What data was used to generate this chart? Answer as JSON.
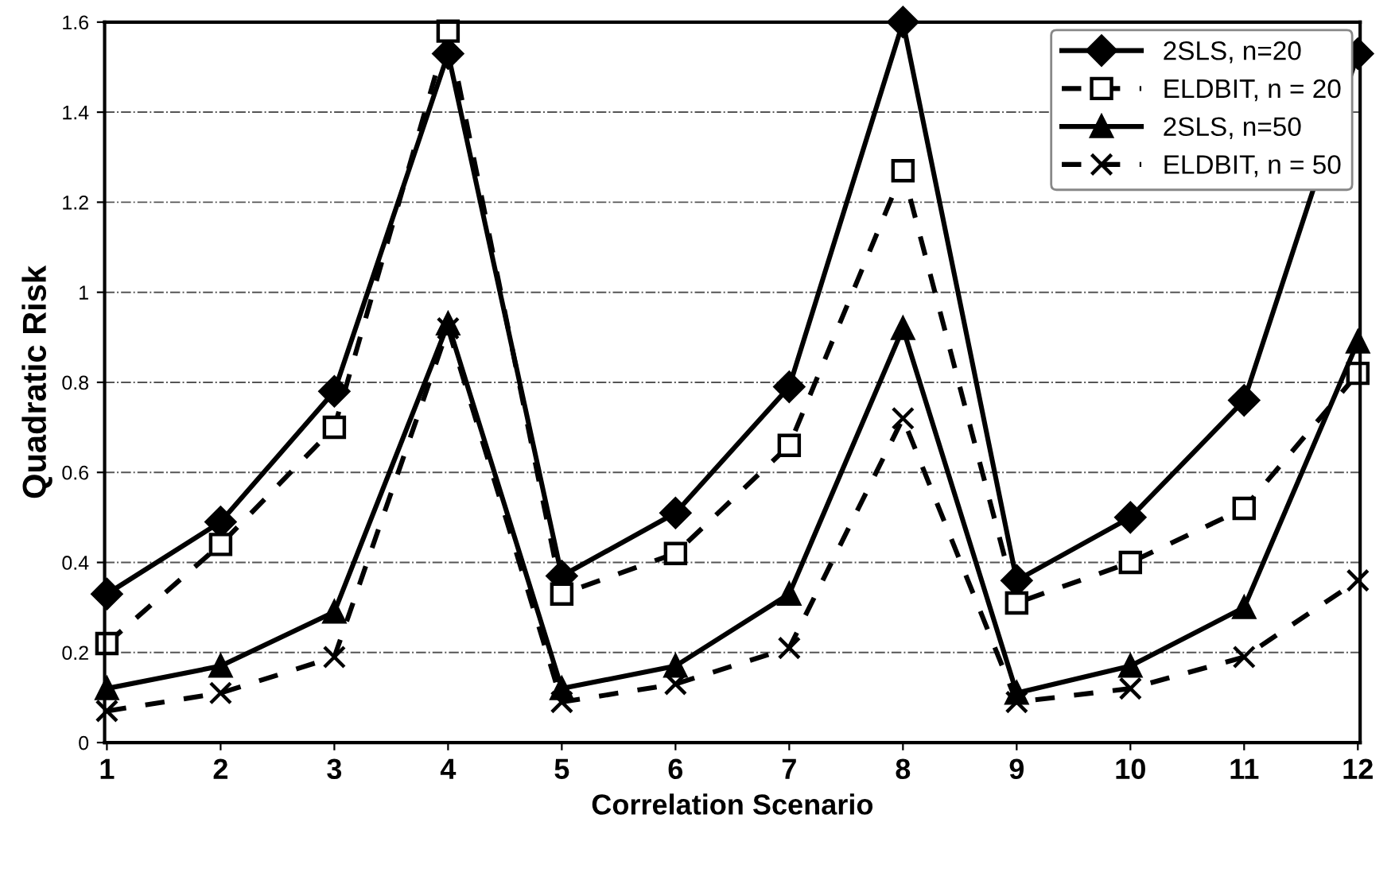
{
  "chart_data": {
    "type": "line",
    "xlabel": "Correlation Scenario",
    "ylabel": "Quadratic Risk",
    "categories": [
      "1",
      "2",
      "3",
      "4",
      "5",
      "6",
      "7",
      "8",
      "9",
      "10",
      "11",
      "12"
    ],
    "series": [
      {
        "name": "2SLS, n=20",
        "color": "#000000",
        "marker": "diamond",
        "line_style": "solid",
        "values": [
          0.33,
          0.49,
          0.78,
          1.53,
          0.37,
          0.51,
          0.79,
          1.6,
          0.36,
          0.5,
          0.76,
          1.53
        ]
      },
      {
        "name": "ELDBIT, n = 20",
        "color": "#000000",
        "marker": "square",
        "line_style": "dashed",
        "values": [
          0.22,
          0.44,
          0.7,
          1.58,
          0.33,
          0.42,
          0.66,
          1.27,
          0.31,
          0.4,
          0.52,
          0.82
        ]
      },
      {
        "name": "2SLS, n=50",
        "color": "#000000",
        "marker": "triangle",
        "line_style": "solid",
        "values": [
          0.12,
          0.17,
          0.29,
          0.93,
          0.12,
          0.17,
          0.33,
          0.92,
          0.11,
          0.17,
          0.3,
          0.89
        ]
      },
      {
        "name": "ELDBIT, n = 50",
        "color": "#000000",
        "marker": "cross",
        "line_style": "dashed",
        "values": [
          0.07,
          0.11,
          0.19,
          0.92,
          0.09,
          0.13,
          0.21,
          0.72,
          0.09,
          0.12,
          0.19,
          0.36
        ]
      }
    ],
    "ylim": [
      0,
      1.6
    ],
    "yticks": [
      0,
      0.2,
      0.4,
      0.6,
      0.8,
      1,
      1.2,
      1.4,
      1.6
    ],
    "grid": "y",
    "legend": "top right"
  }
}
